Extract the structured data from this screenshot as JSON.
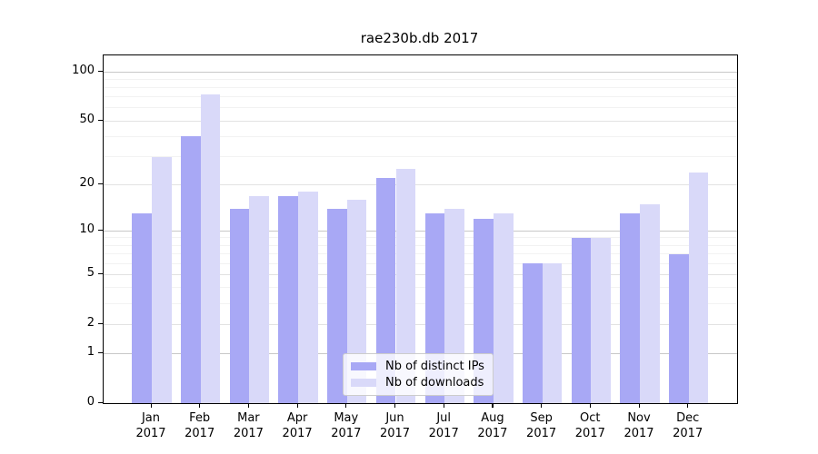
{
  "chart_data": {
    "type": "bar",
    "title": "rae230b.db 2017",
    "categories": [
      "Jan",
      "Feb",
      "Mar",
      "Apr",
      "May",
      "Jun",
      "Jul",
      "Aug",
      "Sep",
      "Oct",
      "Nov",
      "Dec"
    ],
    "year": "2017",
    "series": [
      {
        "name": "Nb of distinct IPs",
        "color": "#a8a8f5",
        "values": [
          13,
          40,
          14,
          17,
          14,
          22,
          13,
          12,
          6,
          9,
          13,
          7
        ]
      },
      {
        "name": "Nb of downloads",
        "color": "#d9d9f9",
        "values": [
          30,
          73,
          17,
          18,
          16,
          25,
          14,
          13,
          6,
          9,
          15,
          24
        ]
      }
    ],
    "xlabel": "",
    "ylabel": "",
    "yscale": "log10(value+1)",
    "ylim": [
      0,
      126
    ],
    "yticks_labeled": [
      0,
      1,
      2,
      5,
      10,
      20,
      50,
      100
    ],
    "yticks_major_emphasis": [
      1,
      10,
      100
    ],
    "yticks_minor": [
      3,
      4,
      6,
      7,
      8,
      9,
      30,
      40,
      60,
      70,
      80,
      90
    ],
    "grid": "on",
    "legend_position": "lower center"
  }
}
